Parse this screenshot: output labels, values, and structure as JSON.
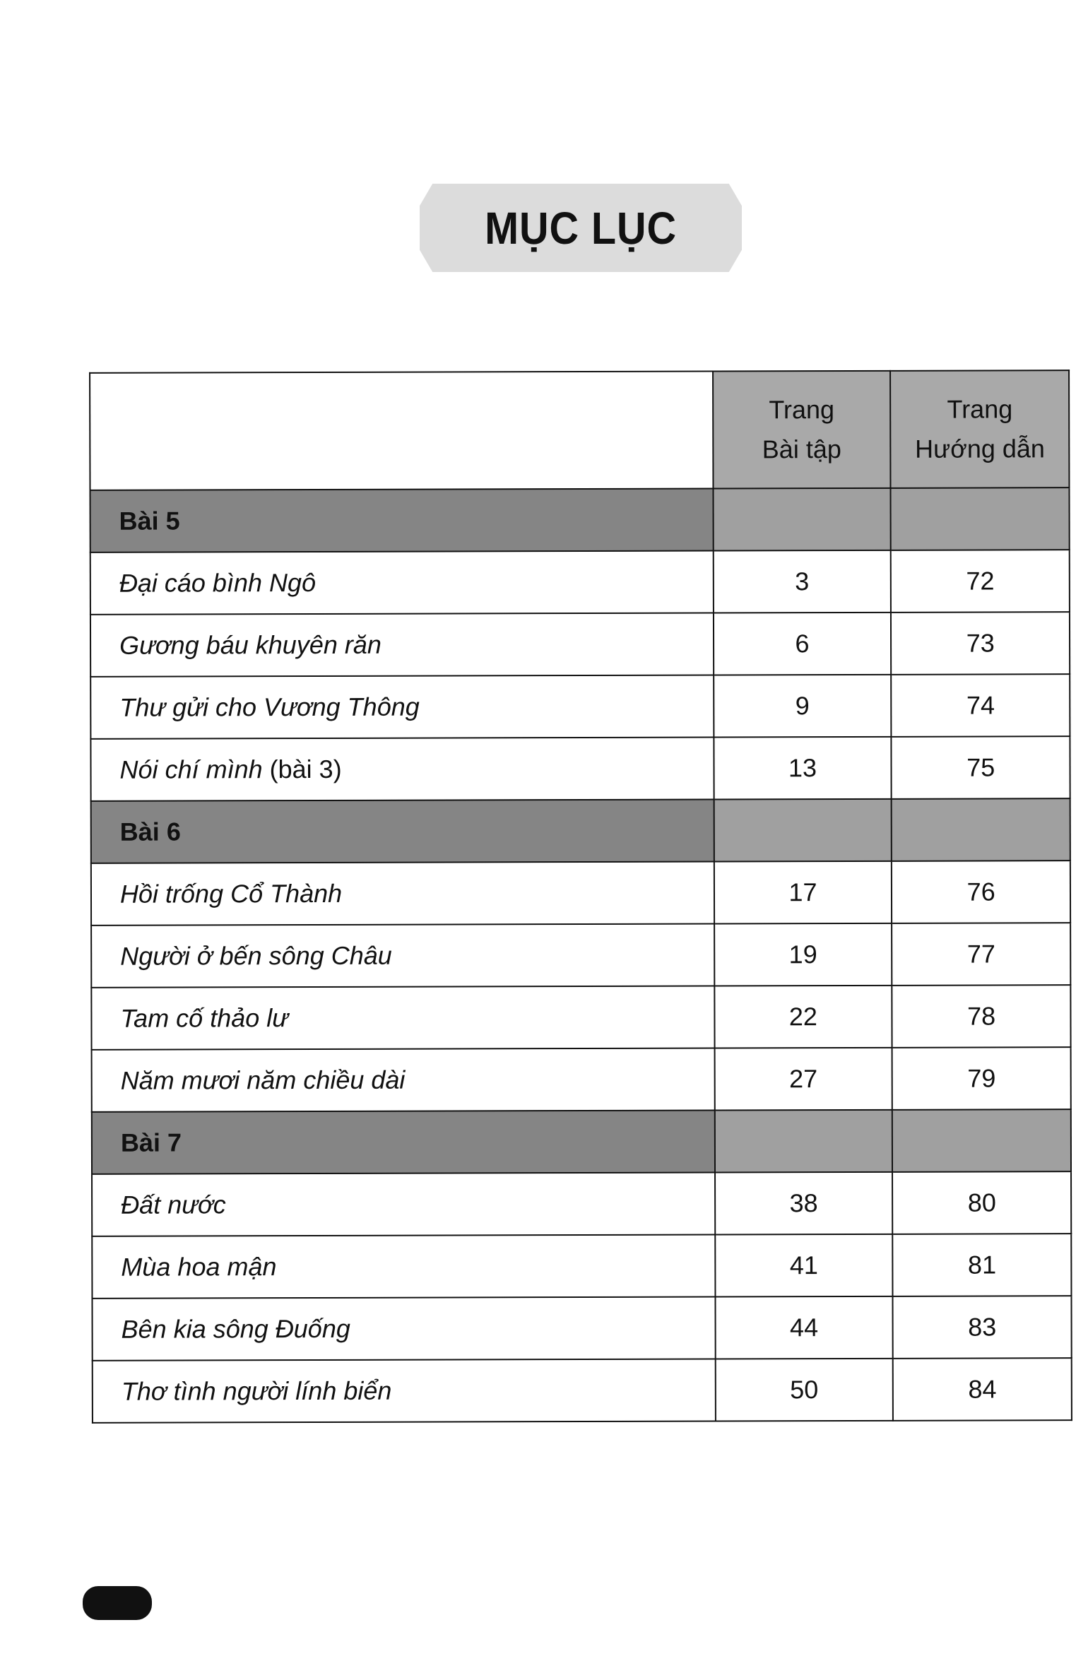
{
  "title": "MỤC LỤC",
  "header": {
    "col2_line1": "Trang",
    "col2_line2": "Bài tập",
    "col3_line1": "Trang",
    "col3_line2": "Hướng dẫn"
  },
  "sections": [
    {
      "label": "Bài 5",
      "items": [
        {
          "title": "Đại cáo bình Ngô",
          "suffix": "",
          "exercise_page": "3",
          "guide_page": "72"
        },
        {
          "title": "Gương báu khuyên răn",
          "suffix": "",
          "exercise_page": "6",
          "guide_page": "73"
        },
        {
          "title": "Thư gửi cho Vương Thông",
          "suffix": "",
          "exercise_page": "9",
          "guide_page": "74"
        },
        {
          "title": "Nói chí mình",
          "suffix": " (bài 3)",
          "exercise_page": "13",
          "guide_page": "75"
        }
      ]
    },
    {
      "label": "Bài 6",
      "items": [
        {
          "title": "Hồi trống Cổ Thành",
          "suffix": "",
          "exercise_page": "17",
          "guide_page": "76"
        },
        {
          "title": "Người ở bến sông Châu",
          "suffix": "",
          "exercise_page": "19",
          "guide_page": "77"
        },
        {
          "title": "Tam cố thảo lư",
          "suffix": "",
          "exercise_page": "22",
          "guide_page": "78"
        },
        {
          "title": "Năm mươi năm chiều dài",
          "suffix": "",
          "exercise_page": "27",
          "guide_page": "79"
        }
      ]
    },
    {
      "label": "Bài 7",
      "items": [
        {
          "title": "Đất nước",
          "suffix": "",
          "exercise_page": "38",
          "guide_page": "80"
        },
        {
          "title": "Mùa hoa mận",
          "suffix": "",
          "exercise_page": "41",
          "guide_page": "81"
        },
        {
          "title": "Bên kia sông Đuống",
          "suffix": "",
          "exercise_page": "44",
          "guide_page": "83"
        },
        {
          "title": "Thơ tình người lính biển",
          "suffix": "",
          "exercise_page": "50",
          "guide_page": "84"
        }
      ]
    }
  ]
}
